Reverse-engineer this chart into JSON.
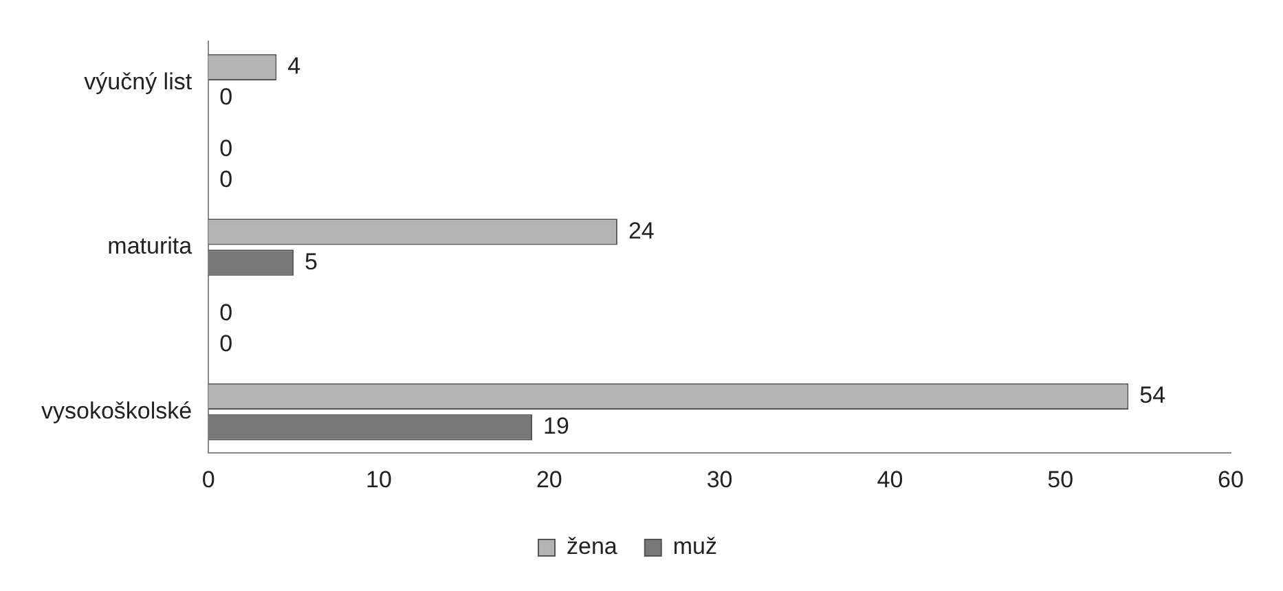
{
  "chart_data": {
    "type": "bar",
    "orientation": "horizontal",
    "categories": [
      "výučný list",
      null,
      "maturita",
      null,
      "vysokoškolské"
    ],
    "series": [
      {
        "name": "žena",
        "color": "#b4b4b4",
        "values": [
          4,
          0,
          24,
          0,
          54
        ]
      },
      {
        "name": "muž",
        "color": "#787878",
        "values": [
          0,
          0,
          5,
          0,
          19
        ]
      }
    ],
    "xlim": [
      0,
      60
    ],
    "xticks": [
      0,
      10,
      20,
      30,
      40,
      50,
      60
    ],
    "data_labels": true,
    "legend": "bottom",
    "grid": false
  }
}
